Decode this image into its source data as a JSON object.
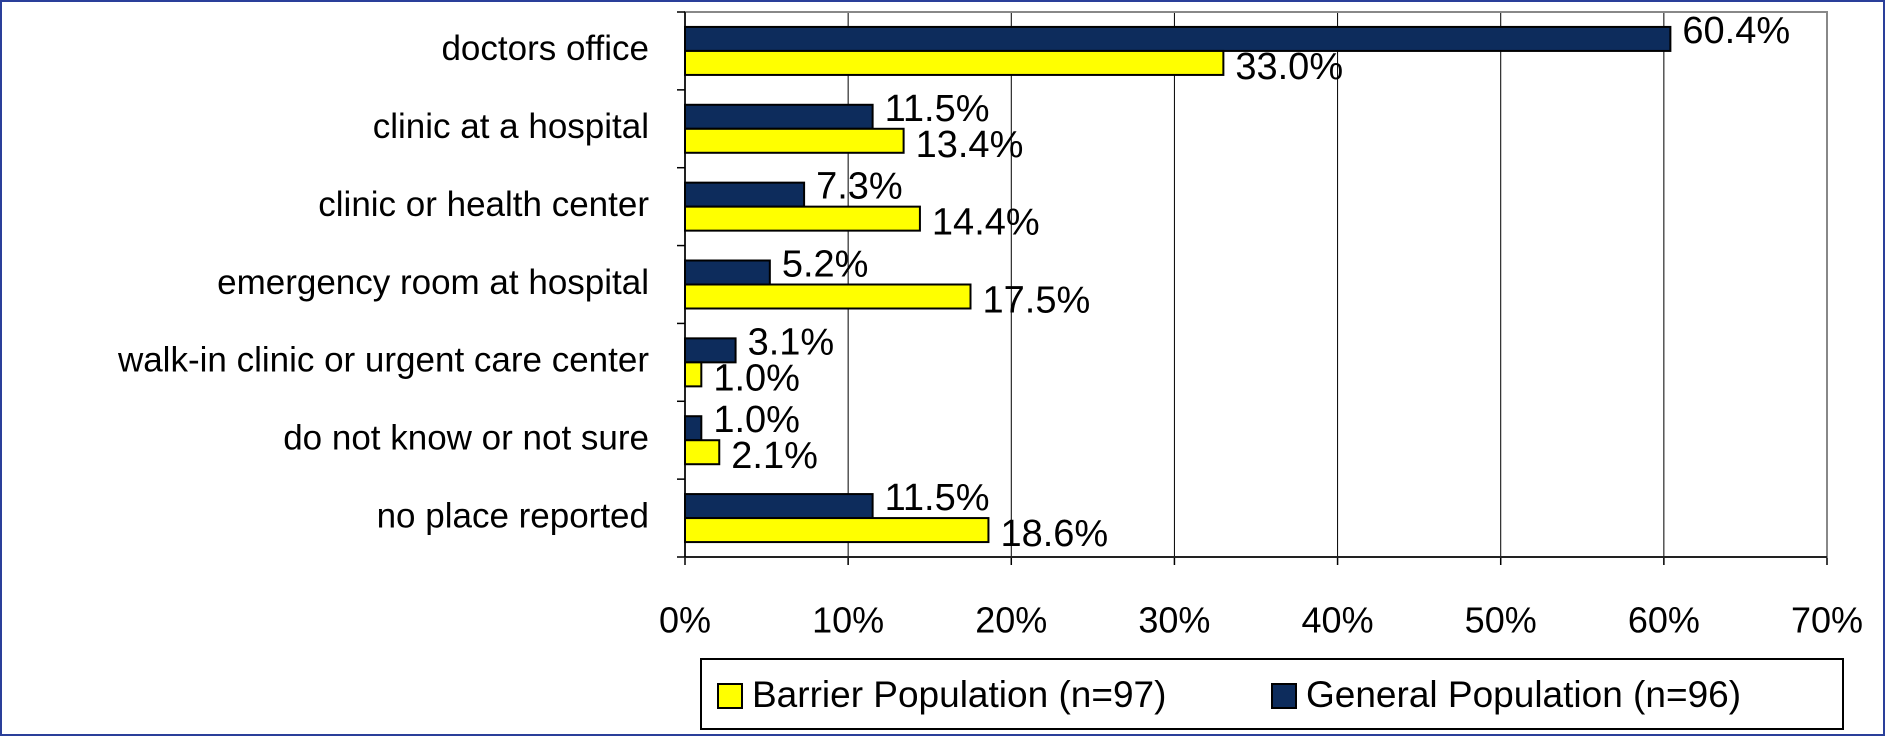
{
  "chart_data": {
    "type": "bar",
    "orientation": "horizontal",
    "categories": [
      "doctors office",
      "clinic at a hospital",
      "clinic or health center",
      "emergency room at hospital",
      "walk-in clinic or urgent care center",
      "do not know or not sure",
      "no place reported"
    ],
    "series": [
      {
        "name": "Barrier Population (n=97)",
        "color": "#ffff00",
        "values": [
          33.0,
          13.4,
          14.4,
          17.5,
          1.0,
          2.1,
          18.6
        ],
        "value_labels": [
          "33.0%",
          "13.4%",
          "14.4%",
          "17.5%",
          "1.0%",
          "2.1%",
          "18.6%"
        ]
      },
      {
        "name": "General Population (n=96)",
        "color": "#0d2c5c",
        "values": [
          60.4,
          11.5,
          7.3,
          5.2,
          3.1,
          1.0,
          11.5
        ],
        "value_labels": [
          "60.4%",
          "11.5%",
          "7.3%",
          "5.2%",
          "3.1%",
          "1.0%",
          "11.5%"
        ]
      }
    ],
    "xlim": [
      0,
      70
    ],
    "xticks": [
      {
        "value": 0,
        "label": "0%"
      },
      {
        "value": 10,
        "label": "10%"
      },
      {
        "value": 20,
        "label": "20%"
      },
      {
        "value": 30,
        "label": "30%"
      },
      {
        "value": 40,
        "label": "40%"
      },
      {
        "value": 50,
        "label": "50%"
      },
      {
        "value": 60,
        "label": "60%"
      },
      {
        "value": 70,
        "label": "70%"
      }
    ],
    "grid": true,
    "legend": "bottom"
  }
}
